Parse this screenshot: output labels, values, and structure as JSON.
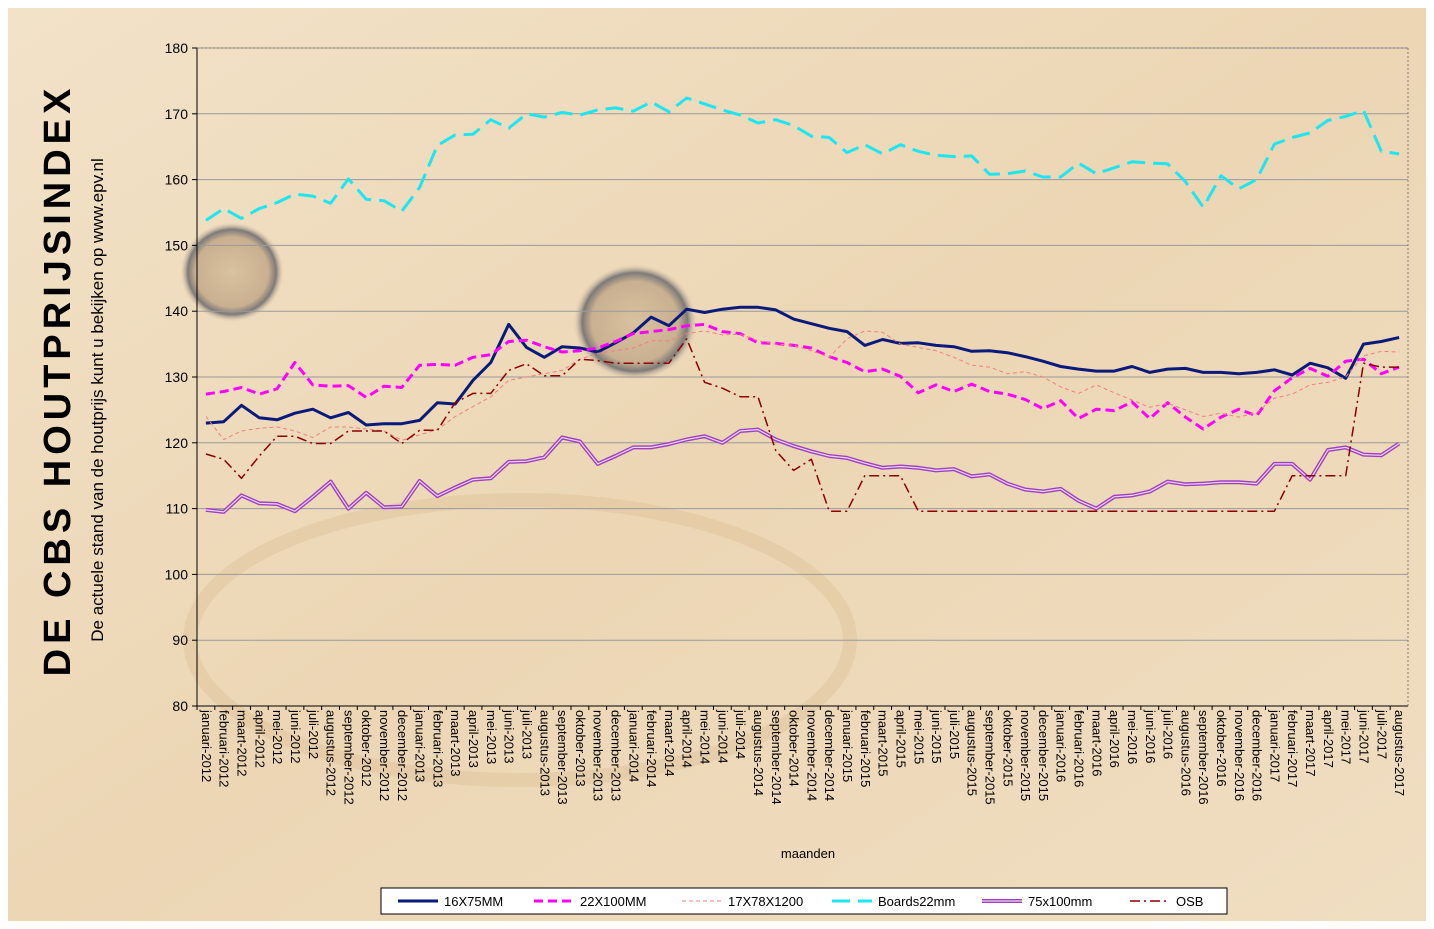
{
  "chart_data": {
    "type": "line",
    "title": "DE CBS HOUTPRIJSINDEX",
    "subtitle": "De actuele stand van de houtprijs kunt u bekijken op www.epv.nl",
    "x_label": "maanden",
    "ylim": [
      80,
      180
    ],
    "yticks": [
      80,
      90,
      100,
      110,
      120,
      130,
      140,
      150,
      160,
      170,
      180
    ],
    "grid": true,
    "legend": "bottom",
    "categories": [
      "januari-2012",
      "februari-2012",
      "maart-2012",
      "april-2012",
      "mei-2012",
      "juni-2012",
      "juli-2012",
      "augustus-2012",
      "september-2012",
      "oktober-2012",
      "november-2012",
      "december-2012",
      "januari-2013",
      "februari-2013",
      "maart-2013",
      "april-2013",
      "mei-2013",
      "juni-2013",
      "juli-2013",
      "augustus-2013",
      "september-2013",
      "oktober-2013",
      "november-2013",
      "december-2013",
      "januari-2014",
      "februari-2014",
      "maart-2014",
      "april-2014",
      "mei-2014",
      "juni-2014",
      "juli-2014",
      "augustus-2014",
      "september-2014",
      "oktober-2014",
      "november-2014",
      "december-2014",
      "januari-2015",
      "februari-2015",
      "maart-2015",
      "april-2015",
      "mei-2015",
      "juni-2015",
      "juli-2015",
      "augustus-2015",
      "september-2015",
      "oktober-2015",
      "november-2015",
      "december-2015",
      "januari-2016",
      "februari-2016",
      "maart-2016",
      "april-2016",
      "mei-2016",
      "juni-2016",
      "juli-2016",
      "augustus-2016",
      "september-2016",
      "oktober-2016",
      "november-2016",
      "december-2016",
      "januari-2017",
      "februari-2017",
      "maart-2017",
      "april-2017",
      "mei-2017",
      "juni-2017",
      "juli-2017",
      "augustus-2017"
    ],
    "series": [
      {
        "name": "16X75MM",
        "color": "#0a1a7a",
        "style": "solid",
        "values": [
          123,
          123.2,
          125.7,
          123.8,
          123.5,
          124.5,
          125.1,
          123.8,
          124.6,
          122.7,
          122.9,
          122.9,
          123.4,
          126.1,
          125.9,
          129.5,
          132.2,
          138,
          134.5,
          133,
          134.6,
          134.4,
          133.8,
          135.2,
          136.7,
          139.1,
          137.8,
          140.3,
          139.8,
          140.3,
          140.6,
          140.6,
          140.2,
          138.8,
          138.1,
          137.4,
          136.9,
          134.8,
          135.7,
          135.1,
          135.2,
          134.8,
          134.6,
          133.9,
          134,
          133.7,
          133.1,
          132.4,
          131.6,
          131.2,
          130.9,
          130.9,
          131.6,
          130.7,
          131.2,
          131.3,
          130.7,
          130.7,
          130.5,
          130.7,
          131.1,
          130.3,
          132.1,
          131.4,
          129.8,
          135,
          135.4,
          136
        ]
      },
      {
        "name": "22X100MM",
        "color": "#ff00ff",
        "style": "dashed",
        "values": [
          127.4,
          127.8,
          128.4,
          127.4,
          128.2,
          132.2,
          128.8,
          128.6,
          128.7,
          126.9,
          128.6,
          128.4,
          131.8,
          131.9,
          131.8,
          133,
          133.4,
          135.4,
          135.6,
          134.6,
          133.8,
          134,
          134.4,
          135.4,
          136.6,
          136.9,
          137.2,
          137.8,
          138,
          136.9,
          136.6,
          135.2,
          135.1,
          134.8,
          134.4,
          133.1,
          132.2,
          130.8,
          131.2,
          130.1,
          127.6,
          128.8,
          127.8,
          128.9,
          127.8,
          127.4,
          126.6,
          125.2,
          126.4,
          123.7,
          125.1,
          124.9,
          126.2,
          123.7,
          126.1,
          123.9,
          122.1,
          123.9,
          125.1,
          124.1,
          127.9,
          129.9,
          131.3,
          130.1,
          132.4,
          132.7,
          130.5,
          131.5
        ]
      },
      {
        "name": "17X78X1200",
        "color": "#f08080",
        "style": "thin-dashed",
        "values": [
          124,
          120.5,
          121.8,
          122.2,
          122.4,
          121.8,
          120.8,
          122.4,
          122.4,
          122.1,
          121.8,
          120.4,
          121.2,
          122,
          124,
          125.5,
          127,
          129.5,
          130,
          130.5,
          131,
          132.7,
          133.6,
          134,
          134.4,
          135.5,
          135.5,
          136.6,
          137,
          136.4,
          136.5,
          135.5,
          135,
          134.8,
          134,
          133,
          135.8,
          137,
          136.8,
          135,
          134.5,
          134,
          133,
          131.8,
          131.5,
          130.5,
          130.8,
          130,
          128.5,
          127.5,
          128.8,
          127.6,
          126.5,
          125.4,
          126,
          125,
          124,
          124.5,
          123.9,
          124.6,
          126.8,
          127.4,
          128.8,
          129.2,
          130,
          133.2,
          133.9,
          133.8
        ]
      },
      {
        "name": "Boards22mm",
        "color": "#1ee6f0",
        "style": "long-dashed",
        "values": [
          153.8,
          155.6,
          154.1,
          155.6,
          156.5,
          157.8,
          157.5,
          156.4,
          160.1,
          157,
          156.8,
          155.2,
          158.8,
          165.2,
          166.8,
          166.9,
          169.1,
          167.8,
          170,
          169.5,
          170.2,
          169.8,
          170.6,
          170.9,
          170.4,
          171.8,
          170.3,
          172.4,
          171.5,
          170.6,
          169.8,
          168.6,
          169.1,
          168.2,
          166.6,
          166.4,
          164.1,
          165.3,
          163.9,
          165.3,
          164.3,
          163.7,
          163.5,
          163.6,
          160.8,
          160.9,
          161.3,
          160.4,
          160.4,
          162.5,
          160.9,
          161.8,
          162.7,
          162.5,
          162.4,
          159.7,
          155.8,
          160.6,
          158.6,
          160,
          165.4,
          166.4,
          167.1,
          169,
          169.6,
          170.5,
          164.3,
          163.9
        ]
      },
      {
        "name": "75x100mm",
        "color": "#a040c0",
        "style": "double",
        "values": [
          109.8,
          109.5,
          112,
          110.8,
          110.7,
          109.6,
          111.8,
          114.1,
          110,
          112.4,
          110.2,
          110.3,
          114.2,
          111.9,
          113.2,
          114.4,
          114.6,
          117.1,
          117.2,
          117.8,
          120.8,
          120.2,
          116.8,
          118,
          119.3,
          119.3,
          119.8,
          120.5,
          121,
          120,
          121.8,
          122,
          120.5,
          119.5,
          118.7,
          118,
          117.7,
          116.9,
          116.2,
          116.4,
          116.2,
          115.8,
          116,
          114.9,
          115.2,
          113.8,
          112.9,
          112.6,
          113,
          111.2,
          110,
          111.8,
          112,
          112.6,
          114.1,
          113.7,
          113.8,
          114,
          114,
          113.8,
          116.8,
          116.8,
          114.4,
          118.9,
          119.3,
          118.2,
          118.1,
          119.9
        ]
      },
      {
        "name": "OSB",
        "color": "#8b0000",
        "style": "dashdot",
        "values": [
          118.3,
          117.5,
          114.6,
          118,
          121,
          121,
          119.9,
          119.9,
          121.8,
          121.8,
          121.8,
          119.9,
          121.9,
          121.9,
          126.1,
          127.5,
          127.5,
          131,
          132,
          130.2,
          130.2,
          132.7,
          132.5,
          132.1,
          132.1,
          132.1,
          132.1,
          135.8,
          129.2,
          128.3,
          127,
          127,
          118.8,
          115.8,
          117.5,
          109.6,
          109.6,
          115,
          115,
          115,
          109.6,
          109.6,
          109.6,
          109.6,
          109.6,
          109.6,
          109.6,
          109.6,
          109.6,
          109.6,
          109.6,
          109.6,
          109.6,
          109.6,
          109.6,
          109.6,
          109.6,
          109.6,
          109.6,
          109.6,
          109.6,
          115,
          115,
          115,
          115,
          132.1,
          131.5,
          131.5
        ]
      }
    ]
  }
}
